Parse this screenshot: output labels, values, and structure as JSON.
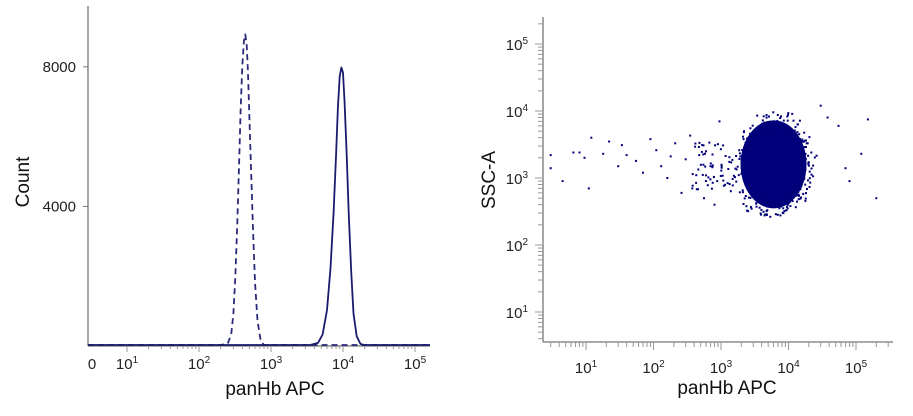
{
  "chart_data": [
    {
      "type": "line",
      "xlabel": "panHb APC",
      "ylabel": "Count",
      "x_scale": "biexponential (0, then log10)",
      "x_ticks": [
        {
          "label": "0",
          "value": 0
        },
        {
          "base": "10",
          "exp": "1",
          "value": 10
        },
        {
          "base": "10",
          "exp": "2",
          "value": 100
        },
        {
          "base": "10",
          "exp": "3",
          "value": 1000
        },
        {
          "base": "10",
          "exp": "4",
          "value": 10000
        },
        {
          "base": "10",
          "exp": "5",
          "value": 100000
        }
      ],
      "y_ticks": [
        {
          "label": "4000",
          "value": 4000
        },
        {
          "label": "8000",
          "value": 8000
        }
      ],
      "ylim": [
        0,
        9500
      ],
      "grid": false,
      "series": [
        {
          "style": "dashed",
          "color": "#2a2a7a",
          "points": [
            [
              200,
              0
            ],
            [
              250,
              40
            ],
            [
              280,
              300
            ],
            [
              300,
              900
            ],
            [
              320,
              2000
            ],
            [
              340,
              3500
            ],
            [
              360,
              5200
            ],
            [
              380,
              6800
            ],
            [
              400,
              8000
            ],
            [
              420,
              8700
            ],
            [
              440,
              8900
            ],
            [
              460,
              8600
            ],
            [
              480,
              7800
            ],
            [
              500,
              6600
            ],
            [
              530,
              5000
            ],
            [
              560,
              3400
            ],
            [
              600,
              1800
            ],
            [
              650,
              700
            ],
            [
              720,
              120
            ],
            [
              800,
              0
            ]
          ]
        },
        {
          "style": "solid",
          "color": "#1a1a6e",
          "points": [
            [
              3500,
              0
            ],
            [
              4500,
              60
            ],
            [
              5200,
              300
            ],
            [
              6000,
              1000
            ],
            [
              6700,
              2200
            ],
            [
              7400,
              3800
            ],
            [
              8000,
              5400
            ],
            [
              8500,
              6800
            ],
            [
              9000,
              7700
            ],
            [
              9500,
              7950
            ],
            [
              10000,
              7800
            ],
            [
              10500,
              7000
            ],
            [
              11200,
              5600
            ],
            [
              12000,
              3800
            ],
            [
              13000,
              2100
            ],
            [
              14000,
              900
            ],
            [
              15500,
              250
            ],
            [
              17500,
              30
            ],
            [
              20000,
              0
            ]
          ]
        }
      ]
    },
    {
      "type": "scatter",
      "xlabel": "panHb APC",
      "ylabel": "SSC-A",
      "x_scale": "log10",
      "y_scale": "log10",
      "x_ticks": [
        {
          "base": "10",
          "exp": "1",
          "value": 10
        },
        {
          "base": "10",
          "exp": "2",
          "value": 100
        },
        {
          "base": "10",
          "exp": "3",
          "value": 1000
        },
        {
          "base": "10",
          "exp": "4",
          "value": 10000
        },
        {
          "base": "10",
          "exp": "5",
          "value": 100000
        }
      ],
      "y_ticks": [
        {
          "base": "10",
          "exp": "1",
          "value": 10
        },
        {
          "base": "10",
          "exp": "2",
          "value": 100
        },
        {
          "base": "10",
          "exp": "3",
          "value": 1000
        },
        {
          "base": "10",
          "exp": "4",
          "value": 10000
        },
        {
          "base": "10",
          "exp": "5",
          "value": 100000
        }
      ],
      "xlim": [
        2.5,
        250000
      ],
      "ylim": [
        3.5,
        200000
      ],
      "grid": false,
      "dot_color": "#00007a",
      "main_population": {
        "x_center": 6000,
        "y_center": 1600,
        "x_range": [
          1200,
          25000
        ],
        "y_range": [
          400,
          20000
        ]
      },
      "outliers": [
        [
          3,
          2200
        ],
        [
          3,
          1400
        ],
        [
          4.5,
          900
        ],
        [
          6.5,
          2400
        ],
        [
          8,
          2400
        ],
        [
          9.5,
          2000
        ],
        [
          11,
          700
        ],
        [
          12,
          4000
        ],
        [
          18,
          2300
        ],
        [
          22,
          3500
        ],
        [
          30,
          1500
        ],
        [
          34,
          3100
        ],
        [
          40,
          2200
        ],
        [
          55,
          1800
        ],
        [
          70,
          1200
        ],
        [
          90,
          3800
        ],
        [
          110,
          2600
        ],
        [
          130,
          1500
        ],
        [
          160,
          1000
        ],
        [
          180,
          2100
        ],
        [
          210,
          3300
        ],
        [
          260,
          600
        ],
        [
          300,
          1900
        ],
        [
          350,
          4300
        ],
        [
          430,
          1100
        ],
        [
          470,
          2900
        ],
        [
          560,
          500
        ],
        [
          600,
          2500
        ],
        [
          700,
          1500
        ],
        [
          800,
          400
        ],
        [
          900,
          3200
        ],
        [
          950,
          7000
        ],
        [
          30000,
          12000
        ],
        [
          38000,
          8000
        ],
        [
          55000,
          6000
        ],
        [
          70000,
          1400
        ],
        [
          80000,
          900
        ],
        [
          120000,
          2300
        ],
        [
          150000,
          7500
        ],
        [
          200000,
          500
        ]
      ]
    }
  ]
}
